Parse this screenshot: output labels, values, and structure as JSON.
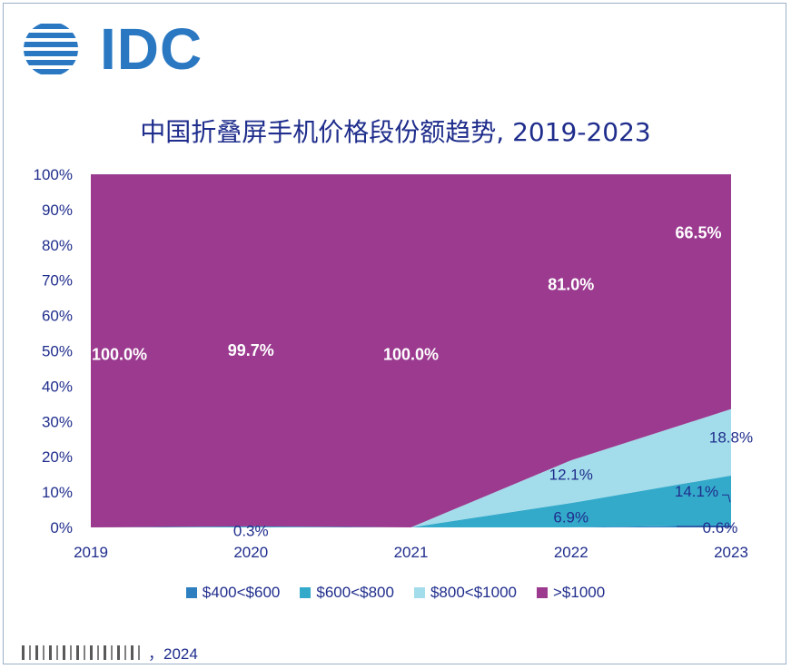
{
  "logo": {
    "text": "IDC"
  },
  "chart_data": {
    "type": "area",
    "stacked": true,
    "title": "中国折叠屏手机价格段份额趋势, 2019-2023",
    "x": [
      "2019",
      "2020",
      "2021",
      "2022",
      "2023"
    ],
    "yticks": [
      "0%",
      "10%",
      "20%",
      "30%",
      "40%",
      "50%",
      "60%",
      "70%",
      "80%",
      "90%",
      "100%"
    ],
    "ylim": [
      0,
      100
    ],
    "series": [
      {
        "name": "$400<$600",
        "color": "#2e7fbf",
        "values": [
          0,
          0,
          0,
          0,
          0.6
        ]
      },
      {
        "name": "$600<$800",
        "color": "#34aacb",
        "values": [
          0,
          0.3,
          0,
          6.9,
          14.1
        ]
      },
      {
        "name": "$800<$1000",
        "color": "#a3dcea",
        "values": [
          0,
          0,
          0,
          12.1,
          18.8
        ]
      },
      {
        "name": ">$1000",
        "color": "#9b3a8f",
        "values": [
          100,
          99.7,
          100,
          81.0,
          66.5
        ]
      }
    ],
    "data_labels": [
      {
        "series": 3,
        "index": 0,
        "text": "100.0%"
      },
      {
        "series": 3,
        "index": 1,
        "text": "99.7%"
      },
      {
        "series": 3,
        "index": 2,
        "text": "100.0%"
      },
      {
        "series": 3,
        "index": 3,
        "text": "81.0%"
      },
      {
        "series": 3,
        "index": 4,
        "text": "66.5%"
      },
      {
        "series": 1,
        "index": 1,
        "text": "0.3%"
      },
      {
        "series": 1,
        "index": 3,
        "text": "6.9%"
      },
      {
        "series": 2,
        "index": 3,
        "text": "12.1%"
      },
      {
        "series": 1,
        "index": 4,
        "text": "14.1%"
      },
      {
        "series": 2,
        "index": 4,
        "text": "18.8%"
      },
      {
        "series": 0,
        "index": 4,
        "text": "0.6%"
      }
    ],
    "legend_position": "bottom"
  },
  "source": {
    "year": "，2024"
  }
}
